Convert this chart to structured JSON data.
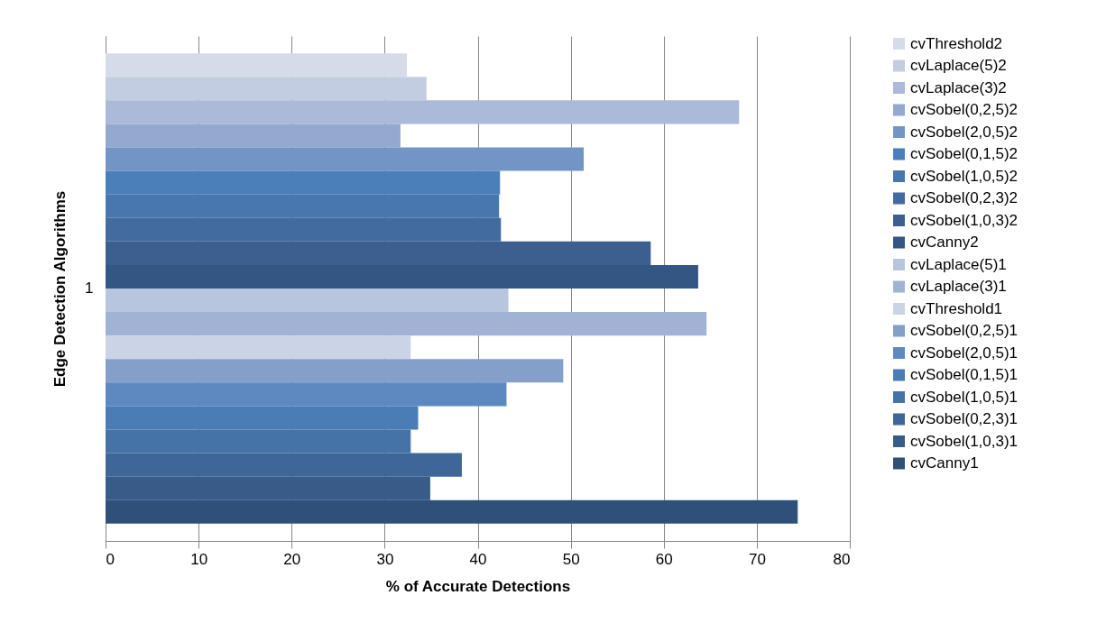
{
  "chart_data": {
    "type": "bar",
    "orientation": "horizontal",
    "xlabel": "% of Accurate Detections",
    "ylabel": "Edge Detection Algorithms",
    "categories": [
      "1"
    ],
    "xlim": [
      0,
      80
    ],
    "xticks": [
      0,
      10,
      20,
      30,
      40,
      50,
      60,
      70,
      80
    ],
    "grid": "x",
    "legend": "right",
    "series": [
      {
        "name": "cvThreshold2",
        "color": "#d5dbe9",
        "values": [
          32.4
        ]
      },
      {
        "name": "cvLaplace(5)2",
        "color": "#c3cde2",
        "values": [
          34.5
        ]
      },
      {
        "name": "cvLaplace(3)2",
        "color": "#aabad8",
        "values": [
          68.1
        ]
      },
      {
        "name": "cvSobel(0,2,5)2",
        "color": "#93a9d0",
        "values": [
          31.7
        ]
      },
      {
        "name": "cvSobel(2,0,5)2",
        "color": "#7395c6",
        "values": [
          51.4
        ]
      },
      {
        "name": "cvSobel(0,1,5)2",
        "color": "#4b7fba",
        "values": [
          42.4
        ]
      },
      {
        "name": "cvSobel(1,0,5)2",
        "color": "#4876ae",
        "values": [
          42.3
        ]
      },
      {
        "name": "cvSobel(0,2,3)2",
        "color": "#426ca0",
        "values": [
          42.5
        ]
      },
      {
        "name": "cvSobel(1,0,3)2",
        "color": "#3c5f8f",
        "values": [
          58.6
        ]
      },
      {
        "name": "cvCanny2",
        "color": "#335782",
        "values": [
          63.7
        ]
      },
      {
        "name": "cvLaplace(5)1",
        "color": "#b8c5df",
        "values": [
          43.3
        ]
      },
      {
        "name": "cvLaplace(3)1",
        "color": "#a1b3d5",
        "values": [
          64.6
        ]
      },
      {
        "name": "cvThreshold1",
        "color": "#cbd4e6",
        "values": [
          32.8
        ]
      },
      {
        "name": "cvSobel(0,2,5)1",
        "color": "#839fca",
        "values": [
          49.2
        ]
      },
      {
        "name": "cvSobel(2,0,5)1",
        "color": "#5d89c0",
        "values": [
          43.1
        ]
      },
      {
        "name": "cvSobel(0,1,5)1",
        "color": "#4a7db6",
        "values": [
          33.6
        ]
      },
      {
        "name": "cvSobel(1,0,5)1",
        "color": "#4573a8",
        "values": [
          32.8
        ]
      },
      {
        "name": "cvSobel(0,2,3)1",
        "color": "#3e6798",
        "values": [
          38.3
        ]
      },
      {
        "name": "cvSobel(1,0,3)1",
        "color": "#385b88",
        "values": [
          34.9
        ]
      },
      {
        "name": "cvCanny1",
        "color": "#2f5078",
        "values": [
          74.4
        ]
      }
    ]
  }
}
